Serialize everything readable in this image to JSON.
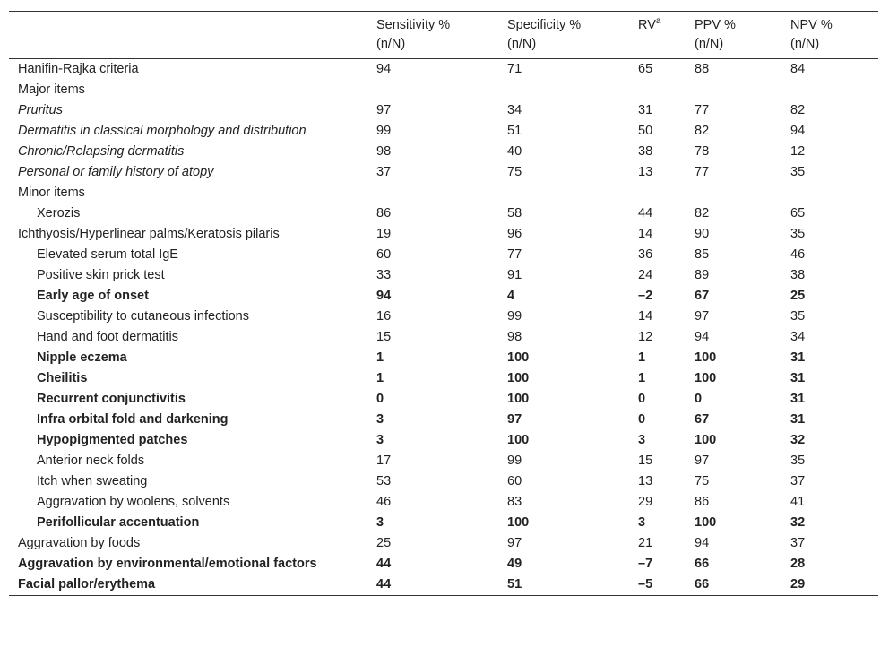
{
  "table": {
    "header": [
      {
        "label": "Sensitivity %",
        "unit": "(n/N)"
      },
      {
        "label": "Specificity %",
        "unit": "(n/N)"
      },
      {
        "label": "RV",
        "note": "a"
      },
      {
        "label": "PPV %",
        "unit": "(n/N)"
      },
      {
        "label": "NPV %",
        "unit": "(n/N)"
      }
    ],
    "rows": [
      [
        "Hanifin-Rajka criteria",
        94,
        71,
        65,
        88,
        84
      ],
      [
        "Major items"
      ],
      [
        "Pruritus",
        97,
        34,
        31,
        77,
        82
      ],
      [
        "Dermatitis in classical morphology and distribution",
        99,
        51,
        50,
        82,
        94
      ],
      [
        "Chronic/Relapsing dermatitis",
        98,
        40,
        38,
        78,
        12
      ],
      [
        "Personal or family history of atopy",
        37,
        75,
        13,
        77,
        35
      ],
      [
        "Minor items"
      ],
      [
        "Xerozis",
        86,
        58,
        44,
        82,
        65
      ],
      [
        "Ichthyosis/Hyperlinear palms/Keratosis pilaris",
        19,
        96,
        14,
        90,
        35
      ],
      [
        "Elevated serum total IgE",
        60,
        77,
        36,
        85,
        46
      ],
      [
        "Positive skin prick test",
        33,
        91,
        24,
        89,
        38
      ],
      [
        "Early age of onset",
        94,
        4,
        "–2",
        67,
        25
      ],
      [
        "Susceptibility to cutaneous infections",
        16,
        99,
        14,
        97,
        35
      ],
      [
        "Hand and foot dermatitis",
        15,
        98,
        12,
        94,
        34
      ],
      [
        "Nipple eczema",
        1,
        100,
        1,
        100,
        31
      ],
      [
        "Cheilitis",
        1,
        100,
        1,
        100,
        31
      ],
      [
        "Recurrent conjunctivitis",
        0,
        100,
        0,
        0,
        31
      ],
      [
        "Infra orbital fold and darkening",
        3,
        97,
        0,
        67,
        31
      ],
      [
        "Hypopigmented patches",
        3,
        100,
        3,
        100,
        32
      ],
      [
        "Anterior neck folds",
        17,
        99,
        15,
        97,
        35
      ],
      [
        "Itch when sweating",
        53,
        60,
        13,
        75,
        37
      ],
      [
        "Aggravation by woolens, solvents",
        46,
        83,
        29,
        86,
        41
      ],
      [
        "Perifollicular accentuation",
        3,
        100,
        3,
        100,
        32
      ],
      [
        "Aggravation by foods",
        25,
        97,
        21,
        94,
        37
      ],
      [
        "Aggravation by environmental/emotional factors",
        44,
        49,
        "–7",
        66,
        28
      ],
      [
        "Facial pallor/erythema",
        44,
        51,
        "–5",
        66,
        29
      ]
    ]
  }
}
